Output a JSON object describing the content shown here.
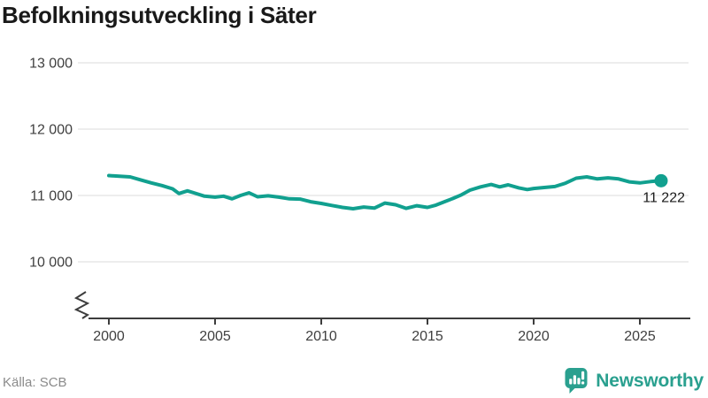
{
  "header": {
    "title": "Befolkningsutveckling i Säter"
  },
  "chart_data": {
    "type": "line",
    "title": "Befolkningsutveckling i Säter",
    "x": [
      2000,
      2000.5,
      2001,
      2001.5,
      2002,
      2002.5,
      2003,
      2003.3,
      2003.7,
      2004,
      2004.5,
      2005,
      2005.4,
      2005.8,
      2006.2,
      2006.6,
      2007,
      2007.5,
      2008,
      2008.5,
      2009,
      2009.5,
      2010,
      2010.5,
      2011,
      2011.5,
      2012,
      2012.5,
      2013,
      2013.5,
      2014,
      2014.5,
      2015,
      2015.4,
      2015.8,
      2016.2,
      2016.6,
      2017,
      2017.5,
      2018,
      2018.4,
      2018.8,
      2019.3,
      2019.7,
      2020,
      2020.5,
      2021,
      2021.5,
      2022,
      2022.5,
      2023,
      2023.5,
      2024,
      2024.5,
      2025,
      2025.5,
      2026
    ],
    "values": [
      11300,
      11290,
      11280,
      11235,
      11190,
      11150,
      11100,
      11030,
      11070,
      11040,
      10990,
      10975,
      10990,
      10950,
      11000,
      11040,
      10980,
      10995,
      10975,
      10950,
      10945,
      10905,
      10880,
      10850,
      10820,
      10800,
      10825,
      10810,
      10885,
      10860,
      10805,
      10845,
      10820,
      10855,
      10905,
      10955,
      11010,
      11080,
      11130,
      11165,
      11130,
      11160,
      11115,
      11090,
      11105,
      11120,
      11135,
      11185,
      11260,
      11280,
      11250,
      11265,
      11250,
      11205,
      11190,
      11210,
      11222
    ],
    "end_label": "11 222",
    "end_value": 11222,
    "ylim": [
      10000,
      13000
    ],
    "yticks": [
      {
        "value": 13000,
        "label": "13 000"
      },
      {
        "value": 12000,
        "label": "12 000"
      },
      {
        "value": 11000,
        "label": "11 000"
      },
      {
        "value": 10000,
        "label": "10 000"
      }
    ],
    "xticks": [
      {
        "value": 2000,
        "label": "2000"
      },
      {
        "value": 2005,
        "label": "2005"
      },
      {
        "value": 2010,
        "label": "2010"
      },
      {
        "value": 2015,
        "label": "2015"
      },
      {
        "value": 2020,
        "label": "2020"
      },
      {
        "value": 2025,
        "label": "2025"
      }
    ],
    "grid": true,
    "axis_break": true,
    "legend": "none",
    "colors": {
      "line": "#11a08f",
      "grid": "#e2e2e2",
      "axis": "#3d3d3d",
      "end_label_color": "#191919"
    }
  },
  "footer": {
    "source": "Källa: SCB",
    "brand": "Newsworthy",
    "brand_color": "#2aa08f"
  }
}
